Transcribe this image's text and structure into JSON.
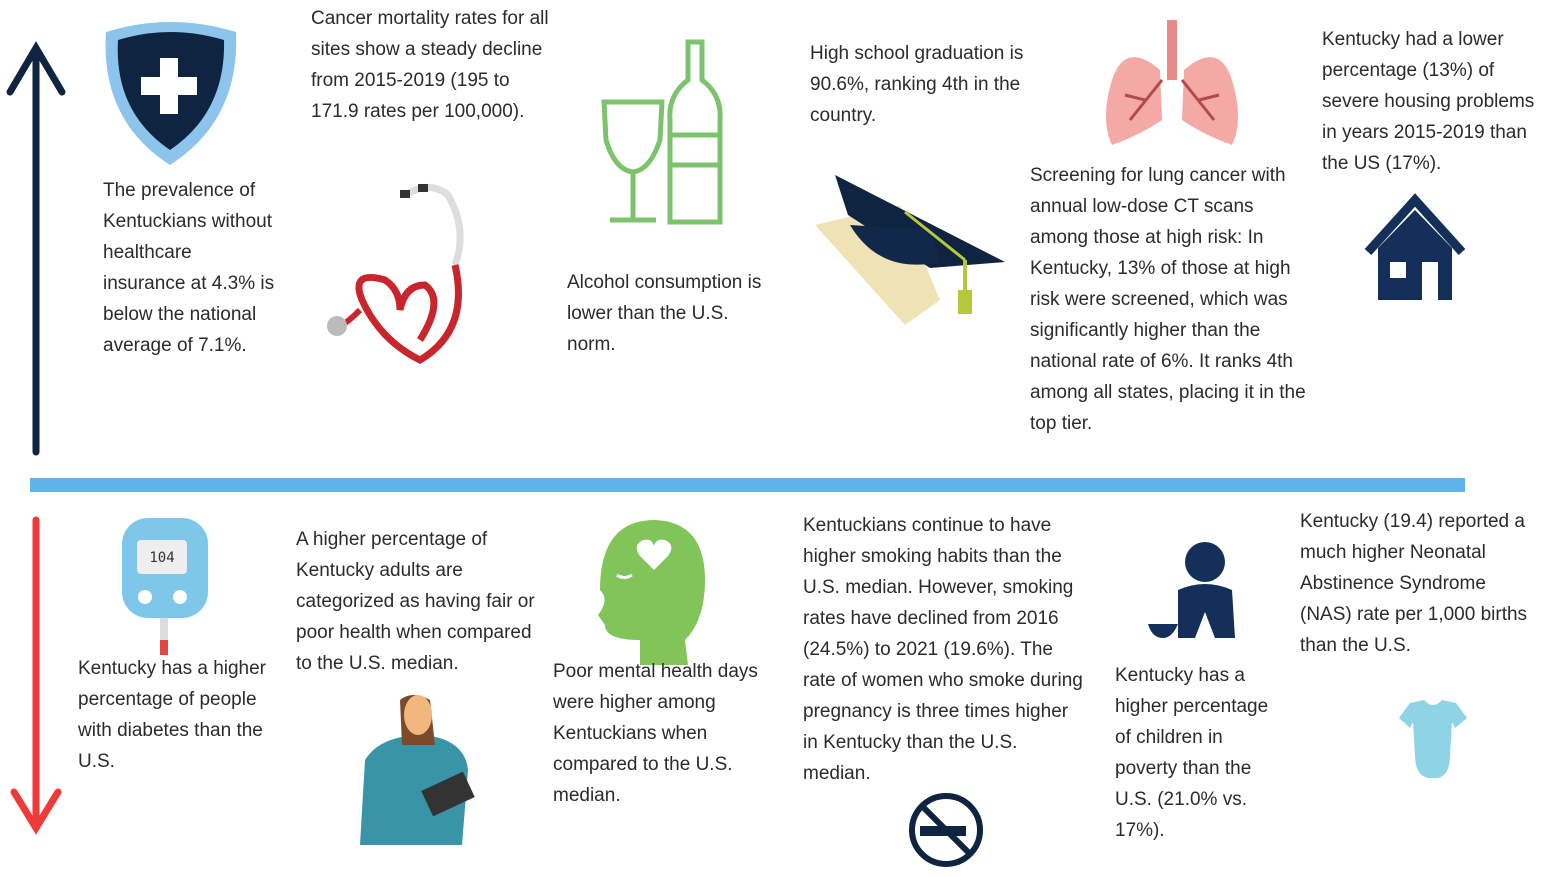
{
  "top": {
    "insurance": "The prevalence of Kentuckians without healthcare insurance at 4.3% is below the national average of 7.1%.",
    "cancer": "Cancer mortality rates for all sites show a steady decline from 2015-2019 (195 to 171.9 rates per 100,000).",
    "alcohol": "Alcohol consumption is lower than the U.S. norm.",
    "graduation": "High school graduation is 90.6%, ranking 4th in the country.",
    "lung": "Screening for lung cancer with annual low-dose CT scans among those at high risk: In Kentucky, 13% of those at high risk were screened, which was significantly higher than the national rate of 6%. It ranks 4th among all states, placing it in the top tier.",
    "housing": "Kentucky had a lower percentage (13%) of severe housing problems in years 2015-2019 than the US (17%)."
  },
  "bottom": {
    "diabetes": "Kentucky has a higher percentage of people with diabetes than the U.S.",
    "fair_health": "A higher percentage of Kentucky adults are categorized as having fair or poor health when compared to the U.S. median.",
    "mental_health": "Poor mental health days were higher among Kentuckians when compared to the U.S. median.",
    "smoking": "Kentuckians continue to have higher smoking habits than the U.S. median. However, smoking rates have declined from 2016 (24.5%) to 2021 (19.6%). The rate of women who smoke during pregnancy is three times higher in Kentucky than the U.S. median.",
    "poverty": "Kentucky has a higher percentage of children in poverty than the U.S. (21.0% vs. 17%).",
    "nas": "Kentucky (19.4) reported a much higher Neonatal Abstinence Syndrome (NAS) rate per 1,000 births than the U.S."
  }
}
